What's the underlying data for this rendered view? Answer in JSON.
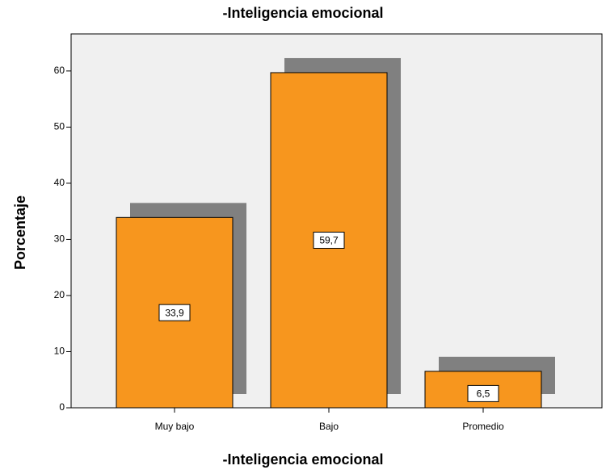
{
  "chart_data": {
    "type": "bar",
    "title": "-Inteligencia emocional",
    "x_label": "-Inteligencia emocional",
    "y_label": "Porcentaje",
    "categories": [
      "Muy bajo",
      "Bajo",
      "Promedio"
    ],
    "values": [
      33.9,
      59.7,
      6.5
    ],
    "value_labels": [
      "33,9",
      "59,7",
      "6,5"
    ],
    "color": "#f7961e",
    "ylim": [
      0,
      66.6
    ],
    "yticks": [
      0,
      10,
      20,
      30,
      40,
      50,
      60
    ]
  }
}
